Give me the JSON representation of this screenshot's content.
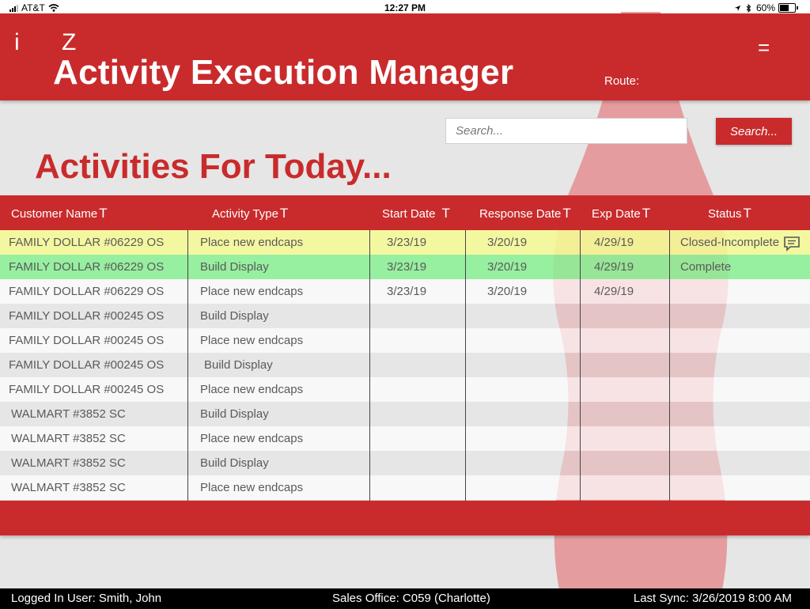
{
  "status_bar": {
    "carrier": "AT&T",
    "time": "12:27 PM",
    "battery": "60%"
  },
  "header": {
    "icon_i": "i",
    "icon_z": "Z",
    "title": "Activity Execution Manager",
    "route_label": "Route:",
    "menu_icon": "="
  },
  "search": {
    "placeholder": "Search...",
    "button_label": "Search..."
  },
  "page_heading": "Activities For Today...",
  "table": {
    "filter_glyph": "T",
    "columns": [
      "Customer Name",
      "Activity Type",
      "Start Date",
      "Response Date",
      "Exp Date",
      "Status"
    ],
    "rows": [
      {
        "customer": "FAMILY DOLLAR #06229 OS",
        "activity": "Place new endcaps",
        "start": "3/23/19",
        "response": "3/20/19",
        "exp": "4/29/19",
        "status": "Closed-Incomplete",
        "highlight": "yellow",
        "has_comment": true
      },
      {
        "customer": "FAMILY DOLLAR #06229 OS",
        "activity": "Build Display",
        "start": "3/23/19",
        "response": "3/20/19",
        "exp": "4/29/19",
        "status": "Complete",
        "highlight": "green",
        "has_comment": false
      },
      {
        "customer": "FAMILY DOLLAR #06229 OS",
        "activity": "Place new endcaps",
        "start": "3/23/19",
        "response": "3/20/19",
        "exp": "4/29/19",
        "status": "",
        "highlight": "white",
        "has_comment": false
      },
      {
        "customer": "FAMILY DOLLAR #00245 OS",
        "activity": "Build Display",
        "start": "",
        "response": "",
        "exp": "",
        "status": "",
        "highlight": "gray",
        "has_comment": false
      },
      {
        "customer": "FAMILY DOLLAR #00245 OS",
        "activity": "Place new endcaps",
        "start": "",
        "response": "",
        "exp": "",
        "status": "",
        "highlight": "white",
        "has_comment": false
      },
      {
        "customer": "FAMILY DOLLAR #00245 OS",
        "activity": "Build Display",
        "start": "",
        "response": "",
        "exp": "",
        "status": "",
        "highlight": "gray",
        "has_comment": false
      },
      {
        "customer": "FAMILY DOLLAR #00245 OS",
        "activity": "Place new endcaps",
        "start": "",
        "response": "",
        "exp": "",
        "status": "",
        "highlight": "white",
        "has_comment": false
      },
      {
        "customer": "WALMART #3852 SC",
        "activity": "Build Display",
        "start": "",
        "response": "",
        "exp": "",
        "status": "",
        "highlight": "gray",
        "has_comment": false
      },
      {
        "customer": "WALMART #3852 SC",
        "activity": "Place new endcaps",
        "start": "",
        "response": "",
        "exp": "",
        "status": "",
        "highlight": "white",
        "has_comment": false
      },
      {
        "customer": "WALMART #3852 SC",
        "activity": "Build Display",
        "start": "",
        "response": "",
        "exp": "",
        "status": "",
        "highlight": "gray",
        "has_comment": false
      },
      {
        "customer": "WALMART #3852 SC",
        "activity": "Place new endcaps",
        "start": "",
        "response": "",
        "exp": "",
        "status": "",
        "highlight": "white",
        "has_comment": false
      }
    ]
  },
  "footer": {
    "logged_in": "Logged In User: Smith, John",
    "sales_office": "Sales Office: C059 (Charlotte)",
    "last_sync": "Last Sync: 3/26/2019 8:00 AM"
  },
  "colors": {
    "brand_red": "#c92b2c",
    "highlight_yellow": "#f5fa96",
    "highlight_green": "#8cf096"
  }
}
